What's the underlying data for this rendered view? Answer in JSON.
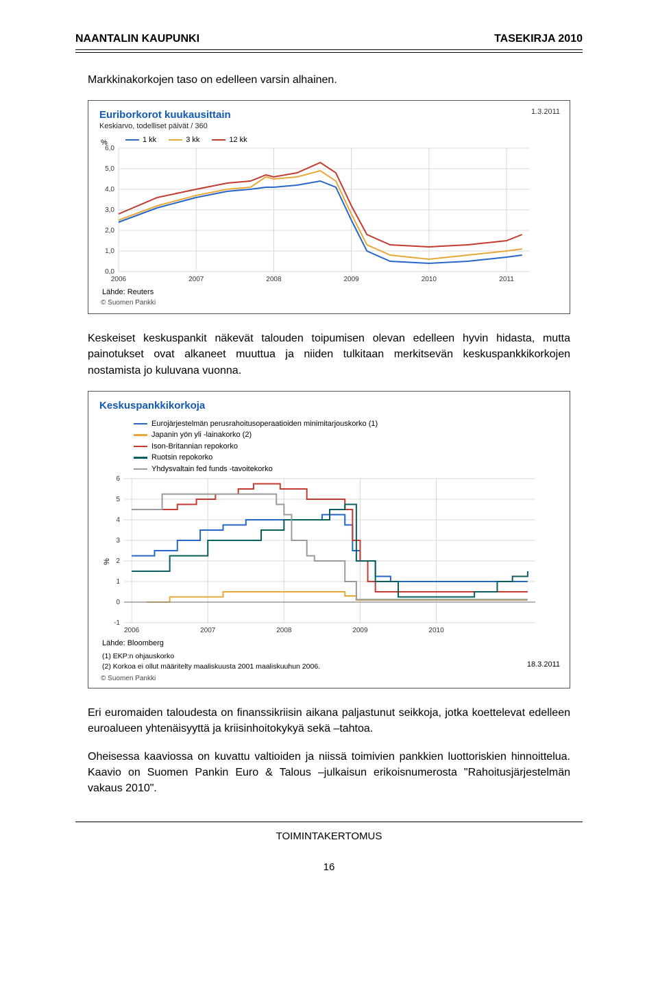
{
  "header": {
    "left": "NAANTALIN KAUPUNKI",
    "right": "TASEKIRJA 2010"
  },
  "paragraphs": {
    "p1": "Markkinakorkojen taso on edelleen varsin alhainen.",
    "p2": "Keskeiset keskuspankit näkevät talouden toipumisen olevan edelleen hyvin hidasta, mutta painotukset ovat alkaneet muuttua ja niiden tulkitaan merkitsevän keskuspankkikorkojen nostamista jo kuluvana vuonna.",
    "p3": "Eri euromaiden taloudesta on finanssikriisin aikana paljastunut seikkoja, jotka koettelevat edelleen euroalueen yhtenäisyyttä ja kriisinhoitokykyä sekä –tahtoa.",
    "p4": "Oheisessa kaaviossa on kuvattu valtioiden ja niissä toimivien pankkien luottoriskien hinnoittelua. Kaavio on Suomen Pankin Euro & Talous –julkaisun erikoisnumerosta \"Rahoitusjärjestelmän vakaus 2010\"."
  },
  "chart1": {
    "title": "Euriborkorot kuukausittain",
    "subtitle": "Keskiarvo, todelliset päivät / 360",
    "date": "1.3.2011",
    "series": [
      {
        "label": "1 kk",
        "color": "#2566c9"
      },
      {
        "label": "3 kk",
        "color": "#e8a838"
      },
      {
        "label": "12 kk",
        "color": "#c43a2f"
      }
    ],
    "ylabel": "%",
    "yticks": [
      "6,0",
      "5,0",
      "4,0",
      "3,0",
      "2,0",
      "1,0",
      "0,0"
    ],
    "ylim": [
      0,
      6
    ],
    "xticks": [
      "2006",
      "2007",
      "2008",
      "2009",
      "2010",
      "2011"
    ],
    "source_label": "Lähde: Reuters",
    "copyright": "© Suomen Pankki",
    "background_color": "#ffffff",
    "grid_color": "#d8d8d8",
    "data": {
      "x": [
        2006.0,
        2006.5,
        2007.0,
        2007.4,
        2007.7,
        2007.9,
        2008.0,
        2008.3,
        2008.6,
        2008.8,
        2009.0,
        2009.2,
        2009.5,
        2010.0,
        2010.5,
        2011.0,
        2011.2
      ],
      "s1kk": [
        2.4,
        3.1,
        3.6,
        3.9,
        4.0,
        4.1,
        4.1,
        4.2,
        4.4,
        4.1,
        2.5,
        1.0,
        0.5,
        0.4,
        0.5,
        0.7,
        0.8
      ],
      "s3kk": [
        2.5,
        3.2,
        3.7,
        4.0,
        4.1,
        4.6,
        4.5,
        4.6,
        4.9,
        4.4,
        2.8,
        1.3,
        0.8,
        0.6,
        0.8,
        1.0,
        1.1
      ],
      "s12kk": [
        2.8,
        3.6,
        4.0,
        4.3,
        4.4,
        4.7,
        4.6,
        4.8,
        5.3,
        4.8,
        3.2,
        1.8,
        1.3,
        1.2,
        1.3,
        1.5,
        1.8
      ]
    }
  },
  "chart2": {
    "title": "Keskuspankkikorkoja",
    "series": [
      {
        "label": "Eurojärjestelmän perusrahoitusoperaatioiden minimitarjouskorko (1)",
        "color": "#2566c9"
      },
      {
        "label": "Japanin yön yli -lainakorko (2)",
        "color": "#e8a838"
      },
      {
        "label": "Ison-Britannian repokorko",
        "color": "#c43a2f"
      },
      {
        "label": "Ruotsin repokorko",
        "color": "#0b5e5e"
      },
      {
        "label": "Yhdysvaltain fed funds -tavoitekorko",
        "color": "#9a9a9a"
      }
    ],
    "ylabel": "%",
    "yticks": [
      "6",
      "5",
      "4",
      "3",
      "2",
      "1",
      "0",
      "-1"
    ],
    "ylim": [
      -1,
      6
    ],
    "xticks": [
      "2006",
      "2007",
      "2008",
      "2009",
      "2010"
    ],
    "source_label": "Lähde: Bloomberg",
    "footnote1": "(1) EKP:n ohjauskorko",
    "footnote2": "(2) Korkoa ei ollut määritelty maaliskuusta 2001 maaliskuuhun 2006.",
    "copyright": "© Suomen Pankki",
    "date": "18.3.2011",
    "background_color": "#ffffff",
    "grid_color": "#d8d8d8",
    "data": {
      "ecb": {
        "x": [
          2006,
          2006.3,
          2006.6,
          2006.9,
          2007.2,
          2007.5,
          2008.5,
          2008.8,
          2008.9,
          2009.0,
          2009.2,
          2009.4,
          2011.2
        ],
        "y": [
          2.25,
          2.5,
          3.0,
          3.5,
          3.75,
          4.0,
          4.25,
          3.75,
          2.5,
          2.0,
          1.25,
          1.0,
          1.0
        ]
      },
      "jpn": {
        "x": [
          2006.2,
          2006.5,
          2007.2,
          2008.8,
          2008.95,
          2011.2
        ],
        "y": [
          0.0,
          0.25,
          0.5,
          0.3,
          0.1,
          0.1
        ]
      },
      "uk": {
        "x": [
          2006,
          2006.6,
          2006.85,
          2007.1,
          2007.4,
          2007.6,
          2007.95,
          2008.3,
          2008.8,
          2008.9,
          2009.0,
          2009.1,
          2009.2,
          2011.2
        ],
        "y": [
          4.5,
          4.75,
          5.0,
          5.25,
          5.5,
          5.75,
          5.5,
          5.0,
          4.5,
          3.0,
          2.0,
          1.0,
          0.5,
          0.5
        ]
      },
      "swe": {
        "x": [
          2006,
          2006.5,
          2007.0,
          2007.7,
          2008.0,
          2008.6,
          2008.8,
          2008.95,
          2009.2,
          2009.5,
          2010.5,
          2010.8,
          2011.0,
          2011.2
        ],
        "y": [
          1.5,
          2.25,
          3.0,
          3.5,
          4.0,
          4.5,
          4.75,
          2.0,
          1.0,
          0.25,
          0.5,
          1.0,
          1.25,
          1.5
        ]
      },
      "fed": {
        "x": [
          2006,
          2006.4,
          2007.7,
          2007.9,
          2008.0,
          2008.1,
          2008.3,
          2008.4,
          2008.8,
          2008.95,
          2011.2
        ],
        "y": [
          4.5,
          5.25,
          5.25,
          4.75,
          4.25,
          3.0,
          2.25,
          2.0,
          1.0,
          0.125,
          0.125
        ]
      }
    }
  },
  "footer": {
    "label": "TOIMINTAKERTOMUS",
    "page": "16"
  }
}
